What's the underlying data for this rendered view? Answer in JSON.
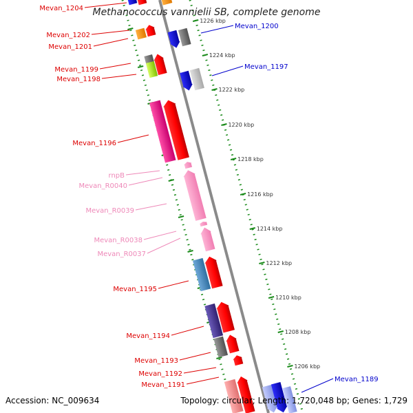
{
  "title": "Methanococcus vannielii SB, complete genome",
  "accession": "Accession: NC_009634",
  "summary": "Topology: circular; Length: 1,720,048 bp; Genes: 1,729",
  "scale_ticks": [
    "1226 kbp",
    "1224 kbp",
    "1222 kbp",
    "1220 kbp",
    "1218 kbp",
    "1216 kbp",
    "1214 kbp",
    "1212 kbp",
    "1210 kbp",
    "1208 kbp",
    "1206 kbp"
  ],
  "genes": [
    {
      "name": "Mevan_1204",
      "color": "#dd0000"
    },
    {
      "name": "Mevan_1202",
      "color": "#dd0000"
    },
    {
      "name": "Mevan_1201",
      "color": "#dd0000"
    },
    {
      "name": "Mevan_1199",
      "color": "#dd0000"
    },
    {
      "name": "Mevan_1198",
      "color": "#dd0000"
    },
    {
      "name": "Mevan_1196",
      "color": "#dd0000"
    },
    {
      "name": "rnpB",
      "color": "#ee88b8"
    },
    {
      "name": "Mevan_R0040",
      "color": "#ee88b8"
    },
    {
      "name": "Mevan_R0039",
      "color": "#ee88b8"
    },
    {
      "name": "Mevan_R0038",
      "color": "#ee88b8"
    },
    {
      "name": "Mevan_R0037",
      "color": "#ee88b8"
    },
    {
      "name": "Mevan_1195",
      "color": "#dd0000"
    },
    {
      "name": "Mevan_1194",
      "color": "#dd0000"
    },
    {
      "name": "Mevan_1193",
      "color": "#dd0000"
    },
    {
      "name": "Mevan_1192",
      "color": "#dd0000"
    },
    {
      "name": "Mevan_1191",
      "color": "#dd0000"
    },
    {
      "name": "Mevan_1200",
      "color": "#0000cc"
    },
    {
      "name": "Mevan_1197",
      "color": "#0000cc"
    },
    {
      "name": "Mevan_1189",
      "color": "#0000cc"
    }
  ]
}
